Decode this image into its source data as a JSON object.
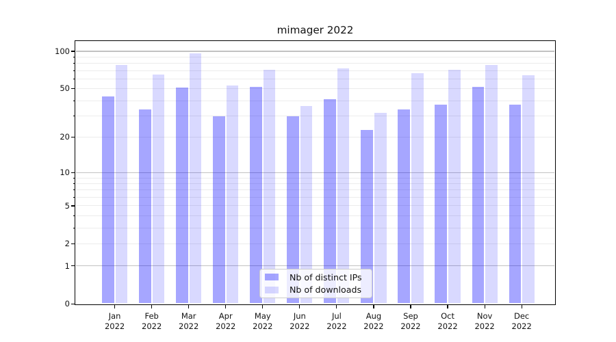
{
  "title": "mimager 2022",
  "chart_data": {
    "type": "bar",
    "title": "mimager 2022",
    "categories": [
      "Jan",
      "Feb",
      "Mar",
      "Apr",
      "May",
      "Jun",
      "Jul",
      "Aug",
      "Sep",
      "Oct",
      "Nov",
      "Dec"
    ],
    "category_year_suffix": "2022",
    "series": [
      {
        "name": "Nb of distinct IPs",
        "color": "rgba(0,0,255,0.35)",
        "values": [
          43,
          34,
          51,
          30,
          52,
          30,
          41,
          23,
          34,
          37,
          52,
          37
        ]
      },
      {
        "name": "Nb of downloads",
        "color": "rgba(0,0,255,0.15)",
        "values": [
          78,
          65,
          96,
          53,
          71,
          36,
          73,
          32,
          67,
          71,
          78,
          64
        ]
      }
    ],
    "xlabel": "",
    "ylabel": "",
    "y_axis": {
      "scale": "log10(1+x)",
      "tick_labels": [
        "100",
        "50",
        "20",
        "10",
        "5",
        "2",
        "1",
        "0"
      ],
      "tick_values": [
        100,
        50,
        20,
        10,
        5,
        2,
        1,
        0
      ],
      "major_grid_values": [
        1,
        10,
        100
      ],
      "minor_grid_values": [
        2,
        3,
        4,
        5,
        6,
        7,
        8,
        9,
        20,
        30,
        40,
        50,
        60,
        70,
        80,
        90
      ],
      "ylim": [
        0,
        120
      ]
    },
    "grid": true,
    "legend_position": "lower center",
    "colors": {
      "bar_distinct_ips": "rgba(0,0,255,0.35)",
      "bar_downloads": "rgba(0,0,255,0.15)",
      "major_grid": "#c2c2c2",
      "minor_grid": "#ececec",
      "spine": "#000000",
      "text": "#111111",
      "legend_border": "#cccccc"
    }
  }
}
